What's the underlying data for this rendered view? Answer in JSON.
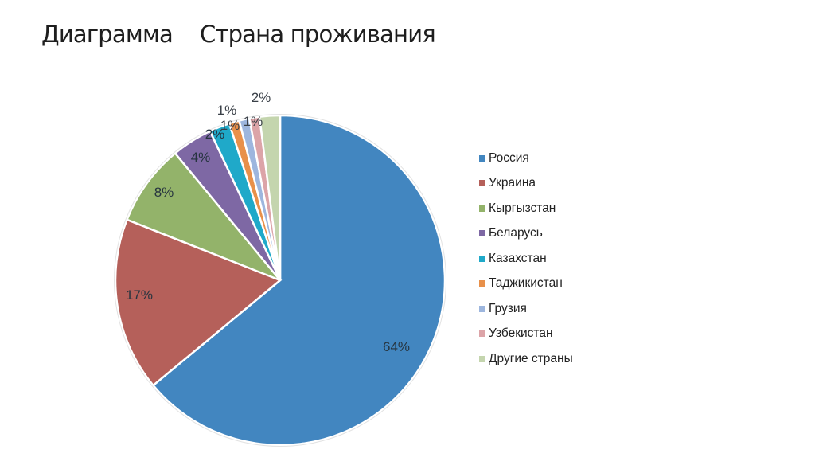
{
  "header": {
    "title_left": "Диаграмма",
    "title_right": "Страна проживания"
  },
  "chart_data": {
    "type": "pie",
    "title": "Страна проживания",
    "categories": [
      "Россия",
      "Украина",
      "Кыргызстан",
      "Беларусь",
      "Казахстан",
      "Таджикистан",
      "Грузия",
      "Узбекистан",
      "Другие страны"
    ],
    "values": [
      64,
      17,
      8,
      4,
      2,
      1,
      1,
      1,
      2
    ],
    "labels": [
      "64%",
      "17%",
      "8%",
      "4%",
      "2%",
      "1%",
      "1%",
      "1%",
      "2%"
    ],
    "colors": [
      "#4286C0",
      "#B5605A",
      "#93B36A",
      "#7E68A4",
      "#1FA9C9",
      "#E8904A",
      "#9DB6DE",
      "#DCA4A8",
      "#C4D5AE"
    ],
    "start_angle": "12 o'clock",
    "direction": "clockwise",
    "legend_position": "right"
  }
}
